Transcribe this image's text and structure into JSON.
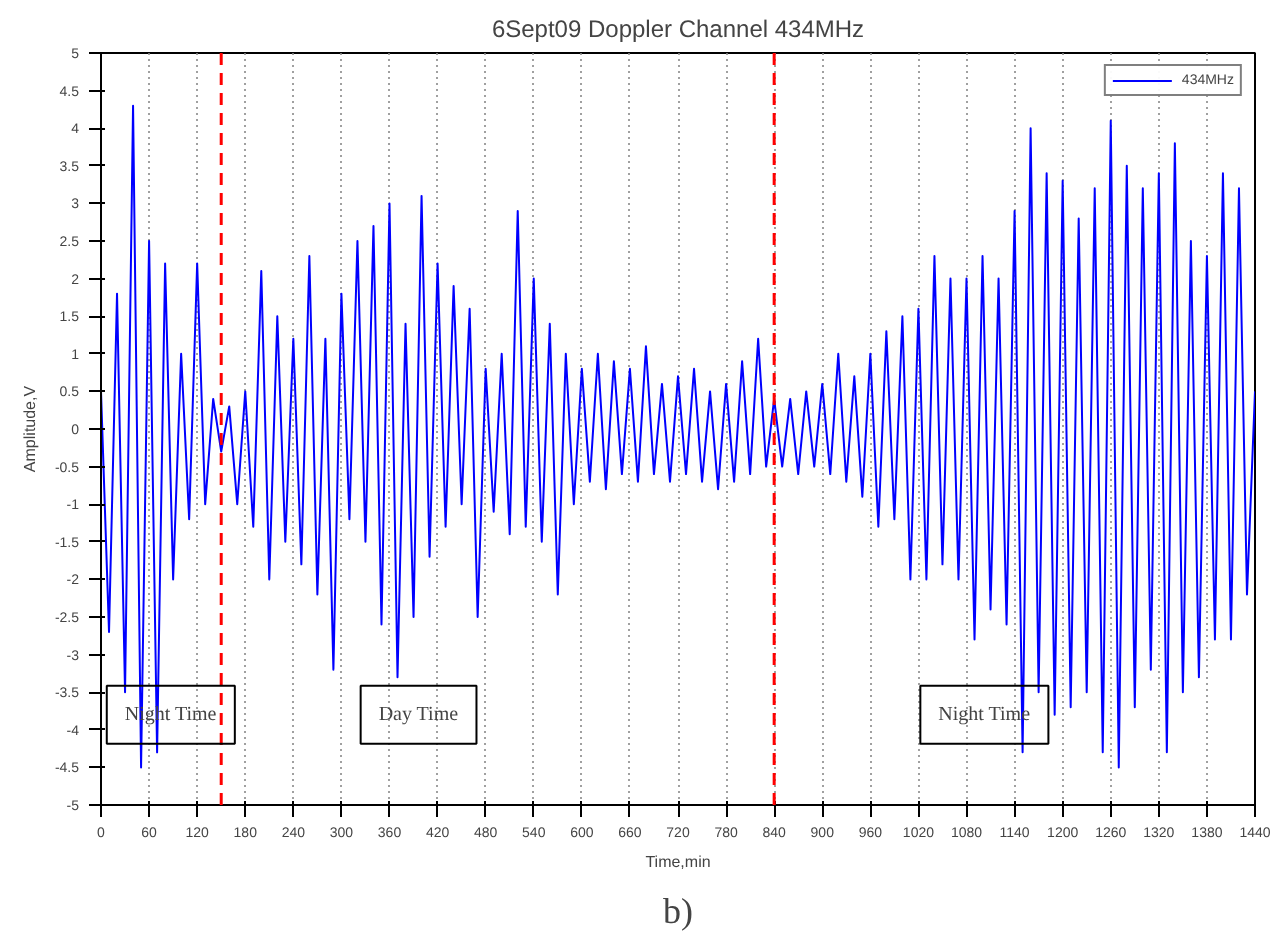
{
  "chart_data": {
    "type": "line",
    "title": "6Sept09 Doppler Channel 434MHz",
    "xlabel": "Time,min",
    "ylabel": "Amplitude,V",
    "x": [
      0,
      10,
      20,
      30,
      40,
      50,
      60,
      70,
      80,
      90,
      100,
      110,
      120,
      130,
      140,
      150,
      160,
      170,
      180,
      190,
      200,
      210,
      220,
      230,
      240,
      250,
      260,
      270,
      280,
      290,
      300,
      310,
      320,
      330,
      340,
      350,
      360,
      370,
      380,
      390,
      400,
      410,
      420,
      430,
      440,
      450,
      460,
      470,
      480,
      490,
      500,
      510,
      520,
      530,
      540,
      550,
      560,
      570,
      580,
      590,
      600,
      610,
      620,
      630,
      640,
      650,
      660,
      670,
      680,
      690,
      700,
      710,
      720,
      730,
      740,
      750,
      760,
      770,
      780,
      790,
      800,
      810,
      820,
      830,
      840,
      850,
      860,
      870,
      880,
      890,
      900,
      910,
      920,
      930,
      940,
      950,
      960,
      970,
      980,
      990,
      1000,
      1010,
      1020,
      1030,
      1040,
      1050,
      1060,
      1070,
      1080,
      1090,
      1100,
      1110,
      1120,
      1130,
      1140,
      1150,
      1160,
      1170,
      1180,
      1190,
      1200,
      1210,
      1220,
      1230,
      1240,
      1250,
      1260,
      1270,
      1280,
      1290,
      1300,
      1310,
      1320,
      1330,
      1340,
      1350,
      1360,
      1370,
      1380,
      1390,
      1400,
      1410,
      1420,
      1430,
      1440
    ],
    "series": [
      {
        "name": "434MHz",
        "color": "#0000ff",
        "values": [
          0.5,
          -2.7,
          1.8,
          -3.5,
          4.3,
          -4.5,
          2.5,
          -4.3,
          2.2,
          -2.0,
          1.0,
          -1.2,
          2.2,
          -1.0,
          0.4,
          -0.3,
          0.3,
          -1.0,
          0.5,
          -1.3,
          2.1,
          -2.0,
          1.5,
          -1.5,
          1.2,
          -1.8,
          2.3,
          -2.2,
          1.2,
          -3.2,
          1.8,
          -1.2,
          2.5,
          -1.5,
          2.7,
          -2.6,
          3.0,
          -3.3,
          1.4,
          -2.5,
          3.1,
          -1.7,
          2.2,
          -1.3,
          1.9,
          -1.0,
          1.6,
          -2.5,
          0.8,
          -1.1,
          1.0,
          -1.4,
          2.9,
          -1.3,
          2.0,
          -1.5,
          1.4,
          -2.2,
          1.0,
          -1.0,
          0.8,
          -0.7,
          1.0,
          -0.8,
          0.9,
          -0.6,
          0.8,
          -0.7,
          1.1,
          -0.6,
          0.6,
          -0.7,
          0.7,
          -0.6,
          0.8,
          -0.7,
          0.5,
          -0.8,
          0.6,
          -0.7,
          0.9,
          -0.6,
          1.2,
          -0.5,
          0.4,
          -0.5,
          0.4,
          -0.6,
          0.5,
          -0.5,
          0.6,
          -0.6,
          1.0,
          -0.7,
          0.7,
          -0.9,
          1.0,
          -1.3,
          1.3,
          -1.2,
          1.5,
          -2.0,
          1.6,
          -2.0,
          2.3,
          -1.8,
          2.0,
          -2.0,
          2.0,
          -2.8,
          2.3,
          -2.4,
          2.0,
          -2.6,
          2.9,
          -4.3,
          4.0,
          -3.5,
          3.4,
          -3.8,
          3.3,
          -3.7,
          2.8,
          -3.5,
          3.2,
          -4.3,
          4.1,
          -4.5,
          3.5,
          -3.7,
          3.2,
          -3.2,
          3.4,
          -4.3,
          3.8,
          -3.5,
          2.5,
          -3.3,
          2.3,
          -2.8,
          3.4,
          -2.8,
          3.2,
          -2.2,
          0.5
        ]
      }
    ],
    "xlim": [
      0,
      1440
    ],
    "ylim": [
      -5,
      5
    ],
    "xticks": [
      0,
      60,
      120,
      180,
      240,
      300,
      360,
      420,
      480,
      540,
      600,
      660,
      720,
      780,
      840,
      900,
      960,
      1020,
      1080,
      1140,
      1200,
      1260,
      1320,
      1380,
      1440
    ],
    "yticks": [
      -5,
      -4.5,
      -4,
      -3.5,
      -3,
      -2.5,
      -2,
      -1.5,
      -1,
      -0.5,
      0,
      0.5,
      1,
      1.5,
      2,
      2.5,
      3,
      3.5,
      4,
      4.5,
      5
    ],
    "grid": "x",
    "legend": "top right",
    "ref_lines": [
      {
        "axis": "x",
        "value": 150,
        "color": "#ff0000",
        "line_style": "dashed"
      },
      {
        "axis": "x",
        "value": 840,
        "color": "#ff0000",
        "line_style": "dashed"
      }
    ],
    "annotations": [
      "Night Time",
      "Day Time",
      "Night Time",
      "b)"
    ]
  }
}
